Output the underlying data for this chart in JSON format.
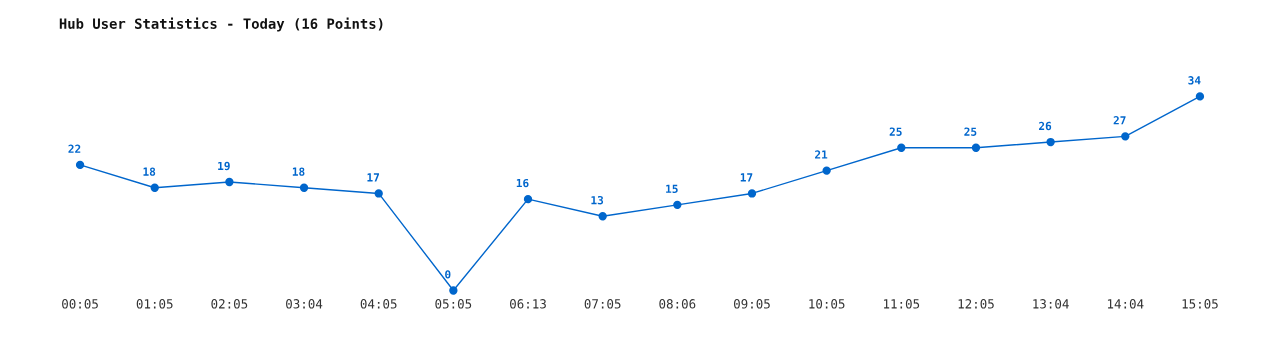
{
  "chart_data": {
    "type": "line",
    "title": "Hub User Statistics - Today (16 Points)",
    "categories": [
      "00:05",
      "01:05",
      "02:05",
      "03:04",
      "04:05",
      "05:05",
      "06:13",
      "07:05",
      "08:06",
      "09:05",
      "10:05",
      "11:05",
      "12:05",
      "13:04",
      "14:04",
      "15:05"
    ],
    "series": [
      {
        "color": "#0066cc",
        "values": [
          22,
          18,
          19,
          18,
          17,
          0,
          16,
          13,
          15,
          17,
          21,
          25,
          25,
          26,
          27,
          34
        ]
      }
    ],
    "data_labels": true,
    "marker": "circle",
    "line_style": "solid",
    "grid": false,
    "legend": false
  }
}
